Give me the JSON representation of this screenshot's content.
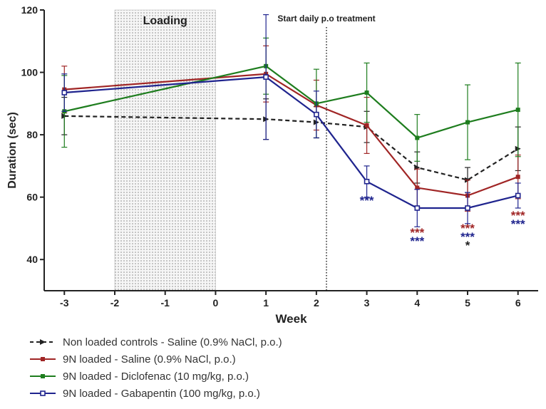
{
  "colors": {
    "control": "#222222",
    "saline": "#a02525",
    "diclofenac": "#1e7d1e",
    "gabapentin": "#1f248e",
    "axis": "#222222"
  },
  "chart_data": {
    "type": "line",
    "xlabel": "Week",
    "ylabel": "Duration (sec)",
    "xlim": [
      -3.4,
      6.4
    ],
    "ylim": [
      30,
      120
    ],
    "x_ticks": [
      -3,
      -2,
      -1,
      0,
      1,
      2,
      3,
      4,
      5,
      6
    ],
    "y_ticks": [
      40,
      60,
      80,
      100,
      120
    ],
    "loading_region": {
      "label": "Loading",
      "x_start": -2,
      "x_end": 0
    },
    "treatment_marker": {
      "label": "Start daily p.o treatment",
      "x": 2.2
    },
    "series": [
      {
        "key": "control",
        "name": "Non loaded controls - Saline (0.9% NaCl, p.o.)",
        "line_style": "dashed",
        "marker": "triangle",
        "x": [
          -3,
          1,
          2,
          3,
          4,
          5,
          6
        ],
        "y": [
          86,
          85,
          84,
          82.5,
          69.5,
          65.5,
          75.5
        ],
        "err": [
          6,
          6.5,
          5,
          5,
          5,
          4,
          7
        ]
      },
      {
        "key": "saline",
        "name": "9N loaded - Saline (0.9% NaCl, p.o.)",
        "line_style": "solid",
        "marker": "filled-square",
        "x": [
          -3,
          1,
          2,
          3,
          4,
          5,
          6
        ],
        "y": [
          94.5,
          99.5,
          89.5,
          83,
          63,
          60.5,
          66.5
        ],
        "err": [
          7.5,
          9,
          8,
          9,
          6,
          5,
          7
        ]
      },
      {
        "key": "diclofenac",
        "name": "9N loaded - Diclofenac (10 mg/kg, p.o.)",
        "line_style": "solid",
        "marker": "filled-square",
        "x": [
          -3,
          1,
          2,
          3,
          4,
          5,
          6
        ],
        "y": [
          87.5,
          102,
          90,
          93.5,
          79,
          84,
          88
        ],
        "err": [
          11.5,
          9,
          11,
          9.5,
          7.5,
          12,
          15
        ]
      },
      {
        "key": "gabapentin",
        "name": "9N loaded - Gabapentin (100 mg/kg, p.o.)",
        "line_style": "solid",
        "marker": "open-square",
        "x": [
          -3,
          1,
          2,
          3,
          4,
          5,
          6
        ],
        "y": [
          93.5,
          98.5,
          86.5,
          65,
          56.5,
          56.5,
          60.5
        ],
        "err": [
          6,
          20,
          7.5,
          5,
          6,
          5,
          4
        ]
      }
    ],
    "annotations": [
      {
        "x": 3,
        "rows": [
          {
            "text": "***",
            "color": "#1f248e"
          }
        ]
      },
      {
        "x": 4,
        "rows": [
          {
            "text": "***",
            "color": "#a02525"
          },
          {
            "text": "***",
            "color": "#1f248e"
          }
        ]
      },
      {
        "x": 5,
        "rows": [
          {
            "text": "***",
            "color": "#a02525"
          },
          {
            "text": "***",
            "color": "#1f248e"
          },
          {
            "text": "*",
            "color": "#222222"
          }
        ]
      },
      {
        "x": 6,
        "rows": [
          {
            "text": "***",
            "color": "#a02525"
          },
          {
            "text": "***",
            "color": "#1f248e"
          }
        ]
      }
    ]
  }
}
